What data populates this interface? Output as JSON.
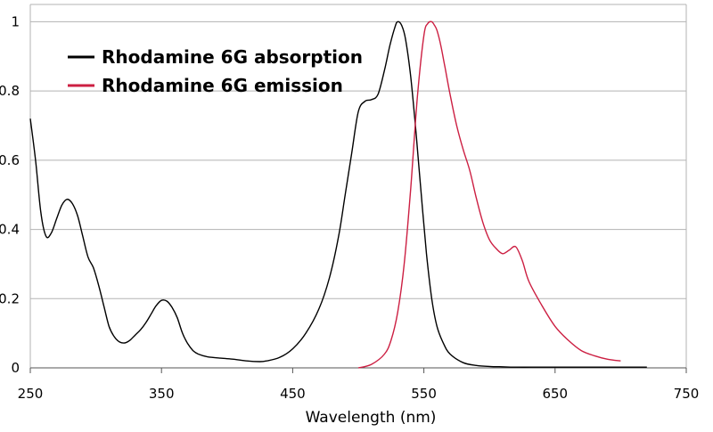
{
  "chart_data": {
    "type": "line",
    "title": "",
    "xlabel": "Wavelength (nm)",
    "ylabel": "",
    "xlim": [
      250,
      750
    ],
    "ylim": [
      0,
      1.05
    ],
    "x_ticks": [
      250,
      350,
      450,
      550,
      650,
      750
    ],
    "x_tick_labels": [
      "250",
      "350",
      "450",
      "550",
      "650",
      "750"
    ],
    "y_ticks": [
      0,
      0.2,
      0.4,
      0.6,
      0.8,
      1
    ],
    "y_tick_labels": [
      "0",
      "0.2",
      "0.4",
      "0.6",
      "0.8",
      "1"
    ],
    "grid": "horizontal",
    "legend_position": "top-left",
    "series": [
      {
        "name": "Rhodamine 6G absorption",
        "color": "#000000",
        "x": [
          250,
          254,
          258,
          262,
          266,
          270,
          274,
          278,
          282,
          286,
          290,
          294,
          298,
          302,
          306,
          310,
          314,
          318,
          322,
          326,
          330,
          334,
          338,
          342,
          346,
          350,
          354,
          358,
          362,
          366,
          370,
          374,
          378,
          385,
          395,
          405,
          415,
          425,
          430,
          440,
          450,
          460,
          470,
          478,
          485,
          490,
          495,
          500,
          505,
          510,
          515,
          520,
          524,
          528,
          530,
          533,
          536,
          540,
          544,
          548,
          552,
          556,
          560,
          565,
          570,
          580,
          590,
          600,
          610,
          620,
          640,
          660,
          680,
          700,
          720
        ],
        "y": [
          0.72,
          0.6,
          0.45,
          0.38,
          0.39,
          0.43,
          0.47,
          0.487,
          0.475,
          0.44,
          0.38,
          0.32,
          0.29,
          0.24,
          0.18,
          0.12,
          0.09,
          0.075,
          0.072,
          0.08,
          0.095,
          0.11,
          0.13,
          0.155,
          0.18,
          0.195,
          0.193,
          0.175,
          0.145,
          0.1,
          0.07,
          0.05,
          0.04,
          0.032,
          0.028,
          0.025,
          0.02,
          0.018,
          0.02,
          0.03,
          0.055,
          0.1,
          0.17,
          0.26,
          0.38,
          0.5,
          0.62,
          0.74,
          0.77,
          0.775,
          0.79,
          0.86,
          0.93,
          0.985,
          1.0,
          0.99,
          0.95,
          0.84,
          0.68,
          0.5,
          0.33,
          0.2,
          0.12,
          0.07,
          0.04,
          0.015,
          0.007,
          0.004,
          0.003,
          0.002,
          0.002,
          0.002,
          0.002,
          0.002,
          0.002
        ]
      },
      {
        "name": "Rhodamine 6G emission",
        "color": "#cc1f42",
        "x": [
          500,
          510,
          520,
          525,
          530,
          535,
          540,
          545,
          550,
          553,
          556,
          558,
          560,
          563,
          566,
          570,
          575,
          580,
          585,
          590,
          595,
          600,
          605,
          610,
          615,
          620,
          625,
          630,
          640,
          650,
          660,
          670,
          680,
          690,
          700
        ],
        "y": [
          0.0,
          0.01,
          0.04,
          0.08,
          0.16,
          0.3,
          0.52,
          0.78,
          0.96,
          0.995,
          1.0,
          0.99,
          0.975,
          0.93,
          0.87,
          0.79,
          0.7,
          0.63,
          0.57,
          0.49,
          0.42,
          0.37,
          0.345,
          0.33,
          0.34,
          0.35,
          0.31,
          0.25,
          0.18,
          0.12,
          0.08,
          0.05,
          0.035,
          0.025,
          0.02
        ]
      }
    ]
  }
}
